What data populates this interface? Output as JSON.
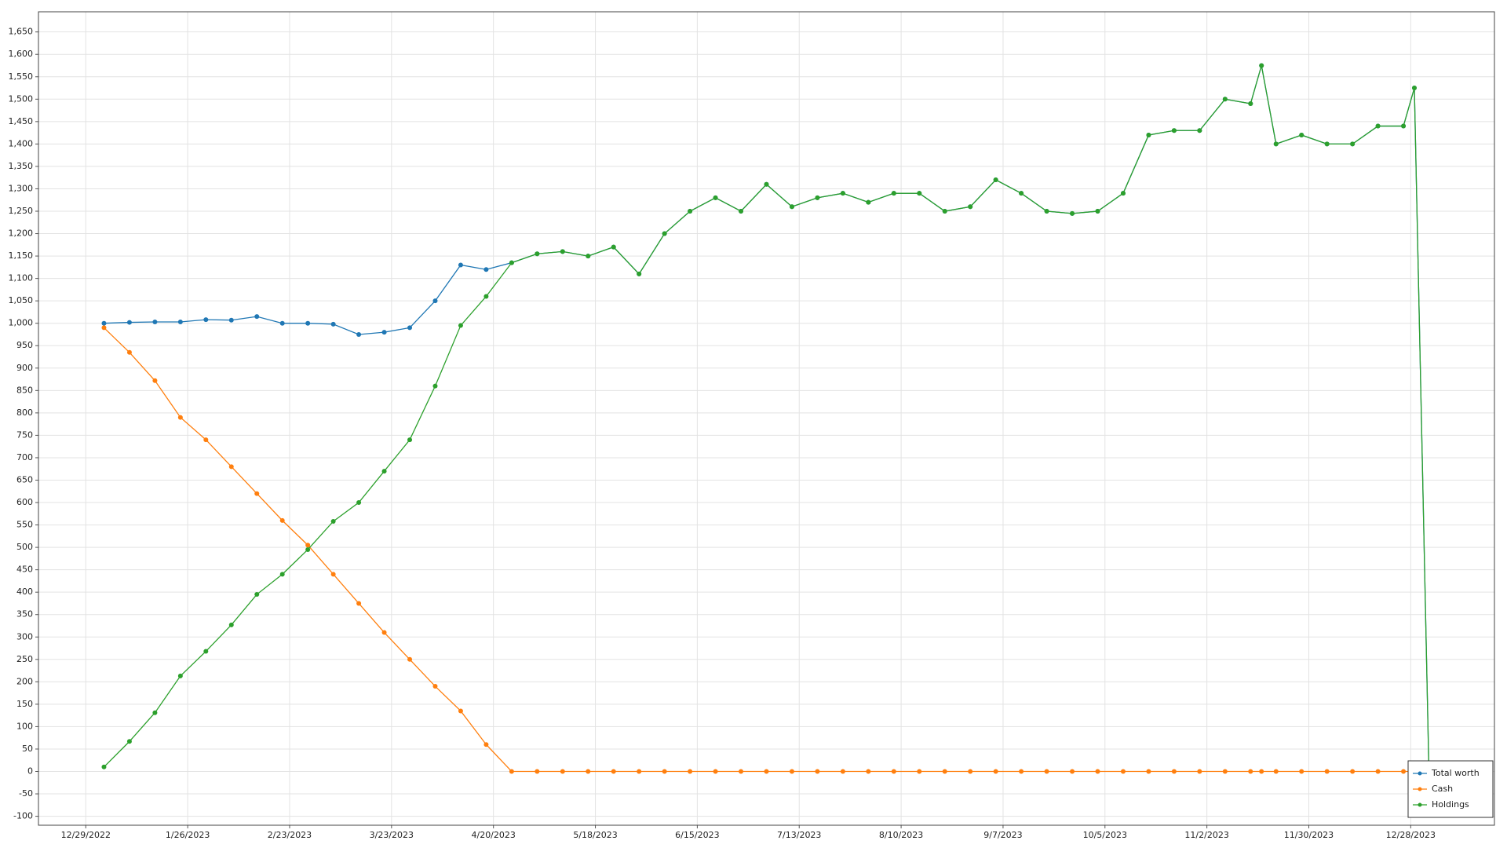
{
  "chart_data": {
    "type": "line",
    "x": [
      "1/3/2023",
      "1/10/2023",
      "1/17/2023",
      "1/24/2023",
      "1/31/2023",
      "2/7/2023",
      "2/14/2023",
      "2/21/2023",
      "2/28/2023",
      "3/7/2023",
      "3/14/2023",
      "3/21/2023",
      "3/28/2023",
      "4/4/2023",
      "4/11/2023",
      "4/18/2023",
      "4/25/2023",
      "5/2/2023",
      "5/9/2023",
      "5/16/2023",
      "5/23/2023",
      "5/30/2023",
      "6/6/2023",
      "6/13/2023",
      "6/20/2023",
      "6/27/2023",
      "7/4/2023",
      "7/11/2023",
      "7/18/2023",
      "7/25/2023",
      "8/1/2023",
      "8/8/2023",
      "8/15/2023",
      "8/22/2023",
      "8/29/2023",
      "9/5/2023",
      "9/12/2023",
      "9/19/2023",
      "9/26/2023",
      "10/3/2023",
      "10/10/2023",
      "10/17/2023",
      "10/24/2023",
      "10/31/2023",
      "11/7/2023",
      "11/14/2023",
      "11/17/2023",
      "11/21/2023",
      "11/28/2023",
      "12/5/2023",
      "12/12/2023",
      "12/19/2023",
      "12/26/2023",
      "12/29/2023",
      "1/2/2024"
    ],
    "series": [
      {
        "name": "Total worth",
        "color": "#1f77b4",
        "values": [
          1000,
          1002,
          1003,
          1003,
          1008,
          1007,
          1015,
          1000,
          1000,
          998,
          975,
          980,
          990,
          1050,
          1130,
          1120,
          1135,
          1155,
          1160,
          1150,
          1170,
          1110,
          1200,
          1250,
          1280,
          1250,
          1310,
          1260,
          1280,
          1290,
          1270,
          1290,
          1290,
          1250,
          1260,
          1320,
          1290,
          1250,
          1245,
          1250,
          1290,
          1420,
          1430,
          1430,
          1500,
          1490,
          1575,
          1400,
          1420,
          1400,
          1400,
          1440,
          1440,
          1525,
          0
        ]
      },
      {
        "name": "Cash",
        "color": "#ff7f0e",
        "values": [
          990,
          935,
          872,
          790,
          740,
          680,
          620,
          560,
          505,
          440,
          375,
          310,
          250,
          190,
          135,
          60,
          0,
          0,
          0,
          0,
          0,
          0,
          0,
          0,
          0,
          0,
          0,
          0,
          0,
          0,
          0,
          0,
          0,
          0,
          0,
          0,
          0,
          0,
          0,
          0,
          0,
          0,
          0,
          0,
          0,
          0,
          0,
          0,
          0,
          0,
          0,
          0,
          0,
          0,
          0
        ]
      },
      {
        "name": "Holdings",
        "color": "#2ca02c",
        "values": [
          10,
          67,
          131,
          213,
          268,
          327,
          395,
          440,
          495,
          558,
          600,
          670,
          740,
          860,
          995,
          1060,
          1135,
          1155,
          1160,
          1150,
          1170,
          1110,
          1200,
          1250,
          1280,
          1250,
          1310,
          1260,
          1280,
          1290,
          1270,
          1290,
          1290,
          1250,
          1260,
          1320,
          1290,
          1250,
          1245,
          1250,
          1290,
          1420,
          1430,
          1430,
          1500,
          1490,
          1575,
          1400,
          1420,
          1400,
          1400,
          1440,
          1440,
          1525,
          0
        ]
      }
    ],
    "xlim": [
      "12/16/2022",
      "1/20/2024"
    ],
    "xticks": [
      "12/29/2022",
      "1/26/2023",
      "2/23/2023",
      "3/23/2023",
      "4/20/2023",
      "5/18/2023",
      "6/15/2023",
      "7/13/2023",
      "8/10/2023",
      "9/7/2023",
      "10/5/2023",
      "11/2/2023",
      "11/30/2023",
      "12/28/2023"
    ],
    "ylim": [
      -120,
      1695
    ],
    "yticks": [
      -100,
      -50,
      0,
      50,
      100,
      150,
      200,
      250,
      300,
      350,
      400,
      450,
      500,
      550,
      600,
      650,
      700,
      750,
      800,
      850,
      900,
      950,
      {
        "value": 1000,
        "label": "1,000"
      },
      {
        "value": 1050,
        "label": "1,050"
      },
      {
        "value": 1100,
        "label": "1,100"
      },
      {
        "value": 1150,
        "label": "1,150"
      },
      {
        "value": 1200,
        "label": "1,200"
      },
      {
        "value": 1250,
        "label": "1,250"
      },
      {
        "value": 1300,
        "label": "1,300"
      },
      {
        "value": 1350,
        "label": "1,350"
      },
      {
        "value": 1400,
        "label": "1,400"
      },
      {
        "value": 1450,
        "label": "1,450"
      },
      {
        "value": 1500,
        "label": "1,500"
      },
      {
        "value": 1550,
        "label": "1,550"
      },
      {
        "value": 1600,
        "label": "1,600"
      },
      {
        "value": 1650,
        "label": "1,650"
      }
    ],
    "grid": true,
    "legend": "lower right"
  }
}
